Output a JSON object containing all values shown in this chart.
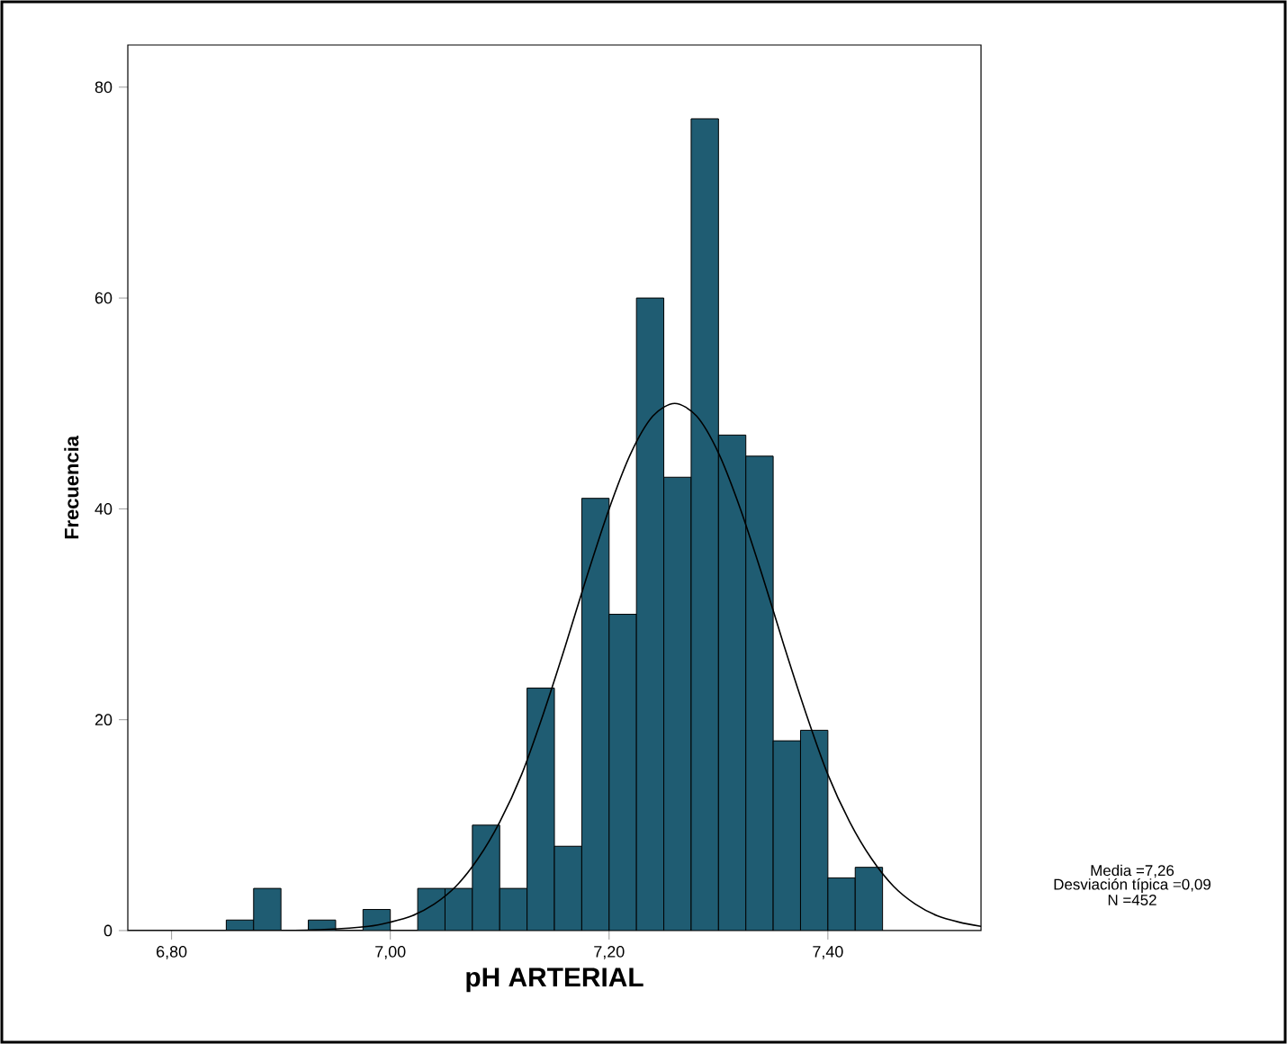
{
  "chart_data": {
    "type": "histogram",
    "xlabel": "pH ARTERIAL",
    "ylabel": "Frecuencia",
    "xlim": [
      6.76,
      7.54
    ],
    "ylim": [
      0,
      84
    ],
    "xticks": [
      {
        "value": 6.8,
        "label": "6,80"
      },
      {
        "value": 7.0,
        "label": "7,00"
      },
      {
        "value": 7.2,
        "label": "7,20"
      },
      {
        "value": 7.4,
        "label": "7,40"
      }
    ],
    "yticks": [
      0,
      20,
      40,
      60,
      80
    ],
    "grid": false,
    "series": [
      {
        "color": "#1f5c72",
        "bins": [
          6.85,
          6.875,
          6.9,
          6.925,
          6.95,
          6.975,
          7.0,
          7.025,
          7.05,
          7.075,
          7.1,
          7.125,
          7.15,
          7.175,
          7.2,
          7.225,
          7.25,
          7.275,
          7.3,
          7.325,
          7.35,
          7.375,
          7.4,
          7.425,
          7.45
        ],
        "values": [
          1,
          4,
          0,
          1,
          0,
          2,
          0,
          4,
          4,
          10,
          4,
          23,
          8,
          41,
          30,
          60,
          43,
          77,
          47,
          45,
          18,
          19,
          5,
          6
        ]
      },
      {
        "type": "line",
        "color": "#000000",
        "x": [
          6.76,
          6.8,
          6.86,
          6.9,
          6.94,
          6.98,
          7.0,
          7.02,
          7.04,
          7.06,
          7.08,
          7.1,
          7.12,
          7.14,
          7.16,
          7.18,
          7.2,
          7.22,
          7.24,
          7.26,
          7.28,
          7.3,
          7.32,
          7.34,
          7.36,
          7.38,
          7.4,
          7.42,
          7.44,
          7.46,
          7.48,
          7.5,
          7.52,
          7.54
        ],
        "values": [
          0,
          0,
          0,
          0,
          0.1,
          0.4,
          0.8,
          1.4,
          2.5,
          4.2,
          6.8,
          10.3,
          14.8,
          20.6,
          27.0,
          33.7,
          40.0,
          45.3,
          48.8,
          50,
          48.8,
          45.3,
          40.0,
          33.7,
          27.0,
          20.6,
          14.8,
          10.3,
          6.8,
          4.2,
          2.5,
          1.4,
          0.8,
          0.4
        ]
      }
    ],
    "annotations": [
      "Media =7,26",
      "Desviación típica =0,09",
      "N =452"
    ]
  }
}
